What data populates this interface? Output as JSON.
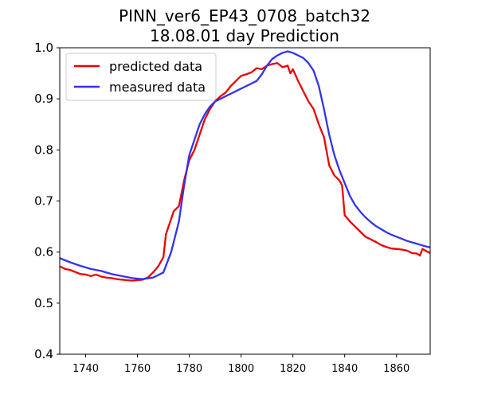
{
  "chart_data": {
    "type": "line",
    "title": "PINN_ver6_EP43_0708_batch32",
    "subtitle": "18.08.01 day Prediction",
    "xlabel": "",
    "ylabel": "",
    "xlim": [
      1730,
      1873
    ],
    "ylim": [
      0.4,
      1.0
    ],
    "x_ticks": [
      1740,
      1760,
      1780,
      1800,
      1820,
      1840,
      1860
    ],
    "y_ticks": [
      0.4,
      0.5,
      0.6,
      0.7,
      0.8,
      0.9,
      1.0
    ],
    "grid": false,
    "legend_position": "top-left",
    "series": [
      {
        "name": "predicted data",
        "color": "#ee0000",
        "x": [
          1730,
          1732,
          1734,
          1736,
          1738,
          1740,
          1742,
          1744,
          1746,
          1748,
          1750,
          1752,
          1754,
          1756,
          1758,
          1760,
          1762,
          1764,
          1766,
          1768,
          1770,
          1771,
          1772,
          1774,
          1776,
          1778,
          1780,
          1782,
          1784,
          1786,
          1788,
          1790,
          1792,
          1794,
          1796,
          1798,
          1800,
          1802,
          1804,
          1806,
          1808,
          1810,
          1812,
          1814,
          1816,
          1818,
          1819,
          1820,
          1822,
          1824,
          1826,
          1828,
          1830,
          1832,
          1834,
          1836,
          1838,
          1839,
          1840,
          1842,
          1844,
          1846,
          1848,
          1850,
          1852,
          1854,
          1856,
          1858,
          1860,
          1862,
          1864,
          1866,
          1868,
          1869,
          1870,
          1873
        ],
        "values": [
          0.572,
          0.567,
          0.565,
          0.561,
          0.557,
          0.556,
          0.553,
          0.556,
          0.552,
          0.55,
          0.549,
          0.547,
          0.546,
          0.545,
          0.544,
          0.545,
          0.546,
          0.55,
          0.56,
          0.572,
          0.59,
          0.635,
          0.65,
          0.68,
          0.69,
          0.74,
          0.78,
          0.8,
          0.83,
          0.86,
          0.88,
          0.895,
          0.905,
          0.912,
          0.925,
          0.935,
          0.945,
          0.948,
          0.952,
          0.96,
          0.958,
          0.965,
          0.968,
          0.97,
          0.962,
          0.965,
          0.95,
          0.958,
          0.935,
          0.915,
          0.895,
          0.88,
          0.85,
          0.825,
          0.77,
          0.75,
          0.74,
          0.73,
          0.672,
          0.66,
          0.65,
          0.64,
          0.63,
          0.625,
          0.62,
          0.614,
          0.61,
          0.607,
          0.606,
          0.605,
          0.603,
          0.598,
          0.597,
          0.593,
          0.606,
          0.598
        ]
      },
      {
        "name": "measured data",
        "color": "#3333ee",
        "x": [
          1730,
          1734,
          1738,
          1742,
          1746,
          1750,
          1754,
          1758,
          1762,
          1766,
          1770,
          1773,
          1776,
          1778,
          1780,
          1782,
          1784,
          1786,
          1788,
          1790,
          1792,
          1794,
          1796,
          1798,
          1800,
          1802,
          1804,
          1806,
          1808,
          1810,
          1812,
          1814,
          1816,
          1818,
          1820,
          1822,
          1824,
          1826,
          1828,
          1830,
          1832,
          1834,
          1836,
          1838,
          1840,
          1842,
          1844,
          1846,
          1848,
          1850,
          1852,
          1854,
          1856,
          1858,
          1860,
          1862,
          1864,
          1866,
          1868,
          1870,
          1873
        ],
        "values": [
          0.588,
          0.58,
          0.573,
          0.567,
          0.563,
          0.557,
          0.553,
          0.549,
          0.547,
          0.55,
          0.56,
          0.6,
          0.66,
          0.73,
          0.79,
          0.82,
          0.85,
          0.87,
          0.885,
          0.895,
          0.9,
          0.905,
          0.91,
          0.915,
          0.92,
          0.925,
          0.93,
          0.935,
          0.948,
          0.965,
          0.978,
          0.985,
          0.99,
          0.993,
          0.99,
          0.985,
          0.98,
          0.97,
          0.955,
          0.925,
          0.88,
          0.83,
          0.79,
          0.76,
          0.735,
          0.71,
          0.692,
          0.679,
          0.668,
          0.659,
          0.651,
          0.645,
          0.639,
          0.634,
          0.63,
          0.626,
          0.622,
          0.619,
          0.616,
          0.613,
          0.609
        ]
      }
    ]
  }
}
